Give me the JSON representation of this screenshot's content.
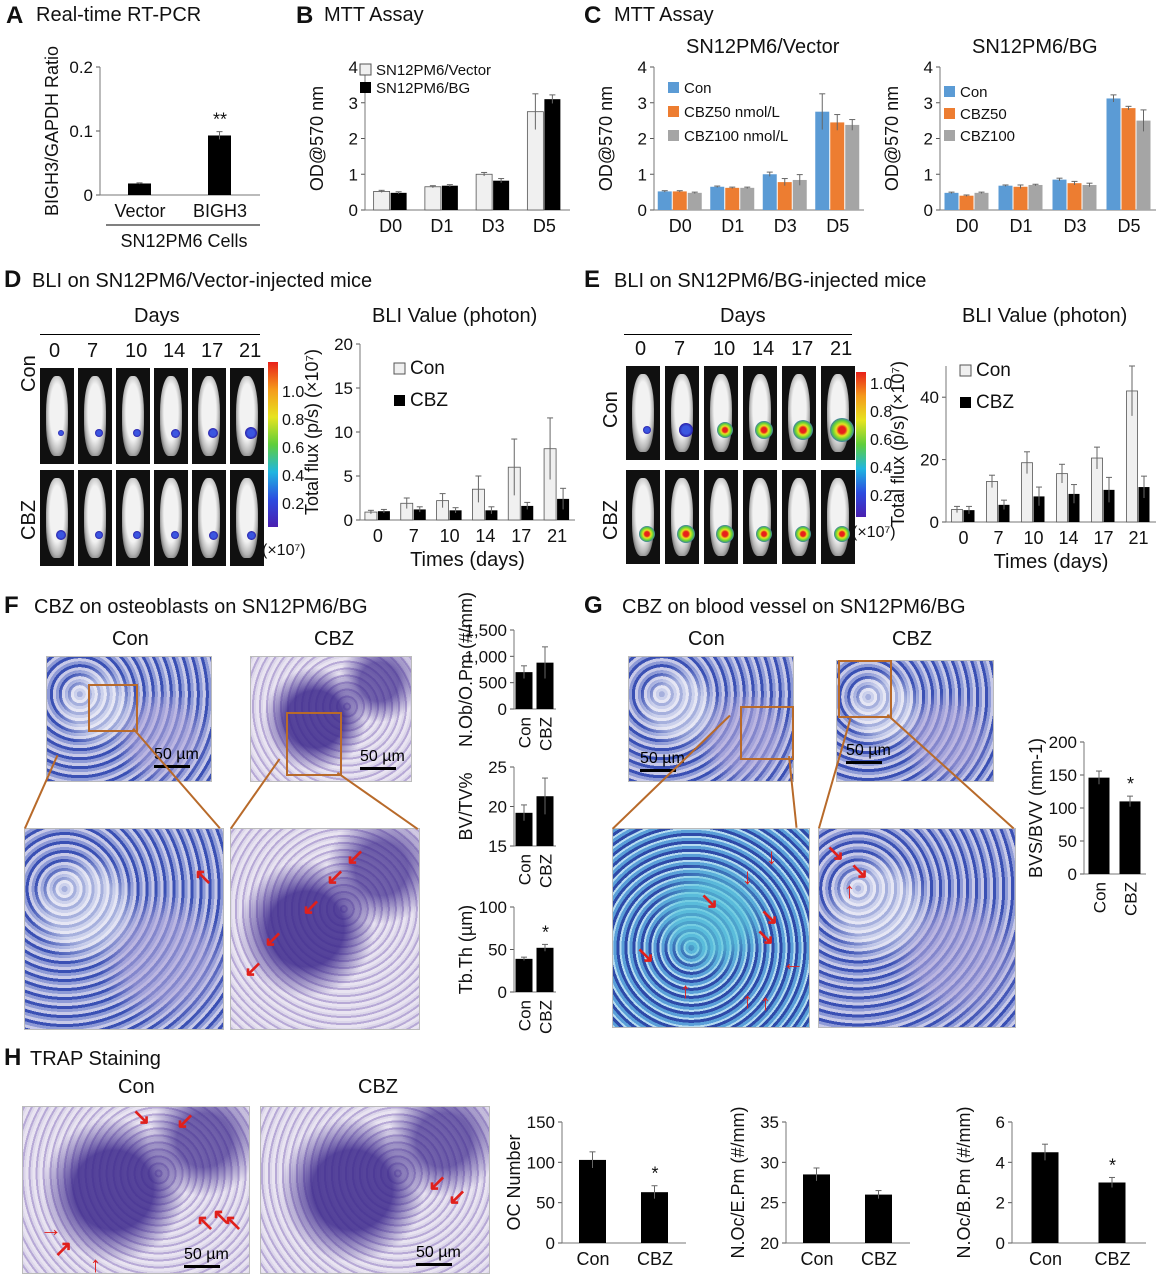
{
  "panels": {
    "A": {
      "label": "A",
      "title": "Real-time RT-PCR"
    },
    "B": {
      "label": "B",
      "title": "MTT Assay"
    },
    "C": {
      "label": "C",
      "title": "MTT Assay",
      "sub1": "SN12PM6/Vector",
      "sub2": "SN12PM6/BG"
    },
    "D": {
      "label": "D",
      "title": "BLI on SN12PM6/Vector-injected mice",
      "days": "Days",
      "bli": "BLI Value (photon)",
      "rowCon": "Con",
      "rowCBZ": "CBZ",
      "colorbar_unit": "(×10⁷)"
    },
    "E": {
      "label": "E",
      "title": "BLI on SN12PM6/BG-injected mice",
      "days": "Days",
      "bli": "BLI Value (photon)",
      "rowCon": "Con",
      "rowCBZ": "CBZ",
      "colorbar_unit": "(×10⁷)"
    },
    "F": {
      "label": "F",
      "title": "CBZ on osteoblasts on SN12PM6/BG",
      "con": "Con",
      "cbz": "CBZ",
      "scale": "50 µm"
    },
    "G": {
      "label": "G",
      "title": "CBZ on blood vessel on SN12PM6/BG",
      "con": "Con",
      "cbz": "CBZ",
      "scale": "50 µm"
    },
    "H": {
      "label": "H",
      "title": "TRAP Staining",
      "con": "Con",
      "cbz": "CBZ",
      "scale": "50 µm"
    }
  },
  "day_labels": [
    "0",
    "7",
    "10",
    "14",
    "17",
    "21"
  ],
  "colorbar_D": [
    "1.0",
    "0.8",
    "0.6",
    "0.4",
    "0.2"
  ],
  "colorbar_E": [
    "1.0",
    "0.8",
    "0.6",
    "0.4",
    "0.2"
  ],
  "colors": {
    "black": "#000000",
    "light": "#f0f0f0",
    "blue": "#5b9bd5",
    "orange": "#ed7d31",
    "gray": "#a5a5a5",
    "arrow": "#e0201c",
    "zoom": "#b86a2a"
  },
  "chart_data": [
    {
      "id": "A",
      "type": "bar",
      "categories": [
        "Vector",
        "BIGH3"
      ],
      "group_label": "SN12PM6 Cells",
      "series": [
        {
          "values": [
            0.018,
            0.093
          ],
          "errors": [
            0.001,
            0.006
          ],
          "color": "#000000"
        }
      ],
      "ylabel": "BIGH3/GAPDH Ratio",
      "ylim": [
        0,
        0.2
      ],
      "yticks": [
        "0",
        "0.1",
        "0.2"
      ],
      "annotations": [
        {
          "index": 1,
          "text": "**"
        }
      ]
    },
    {
      "id": "B",
      "type": "bar",
      "categories": [
        "D0",
        "D1",
        "D3",
        "D5"
      ],
      "series": [
        {
          "name": "SN12PM6/Vector",
          "values": [
            0.52,
            0.65,
            1.0,
            2.75
          ],
          "errors": [
            0.03,
            0.03,
            0.05,
            0.5
          ],
          "color": "#f0f0f0"
        },
        {
          "name": "SN12PM6/BG",
          "values": [
            0.48,
            0.68,
            0.82,
            3.1
          ],
          "errors": [
            0.03,
            0.03,
            0.06,
            0.12
          ],
          "color": "#000000"
        }
      ],
      "ylabel": "OD@570 nm",
      "ylim": [
        0,
        4
      ],
      "yticks": [
        "0",
        "1",
        "2",
        "3",
        "4"
      ],
      "legend": "top-left"
    },
    {
      "id": "C1",
      "type": "bar",
      "categories": [
        "D0",
        "D1",
        "D3",
        "D5"
      ],
      "series": [
        {
          "name": "Con",
          "values": [
            0.52,
            0.65,
            1.0,
            2.75
          ],
          "errors": [
            0.02,
            0.02,
            0.06,
            0.5
          ],
          "color": "#5b9bd5"
        },
        {
          "name": "CBZ50 nmol/L",
          "values": [
            0.52,
            0.62,
            0.78,
            2.45
          ],
          "errors": [
            0.02,
            0.02,
            0.1,
            0.22
          ],
          "color": "#ed7d31"
        },
        {
          "name": "CBZ100 nmol/L",
          "values": [
            0.48,
            0.62,
            0.84,
            2.38
          ],
          "errors": [
            0.02,
            0.02,
            0.15,
            0.15
          ],
          "color": "#a5a5a5"
        }
      ],
      "ylabel": "OD@570 nm",
      "ylim": [
        0,
        4
      ],
      "yticks": [
        "0",
        "1",
        "2",
        "3",
        "4"
      ],
      "legend": "top-left"
    },
    {
      "id": "C2",
      "type": "bar",
      "categories": [
        "D0",
        "D1",
        "D3",
        "D5"
      ],
      "series": [
        {
          "name": "Con",
          "values": [
            0.48,
            0.68,
            0.85,
            3.12
          ],
          "errors": [
            0.02,
            0.02,
            0.04,
            0.1
          ],
          "color": "#5b9bd5"
        },
        {
          "name": "CBZ50",
          "values": [
            0.4,
            0.65,
            0.75,
            2.85
          ],
          "errors": [
            0.02,
            0.05,
            0.05,
            0.05
          ],
          "color": "#ed7d31"
        },
        {
          "name": "CBZ100",
          "values": [
            0.48,
            0.7,
            0.7,
            2.5
          ],
          "errors": [
            0.02,
            0.02,
            0.05,
            0.3
          ],
          "color": "#a5a5a5"
        }
      ],
      "ylabel": "OD@570 nm",
      "ylim": [
        0,
        4
      ],
      "yticks": [
        "0",
        "1",
        "2",
        "3",
        "4"
      ],
      "legend": "top-left"
    },
    {
      "id": "D",
      "type": "bar",
      "categories": [
        "0",
        "7",
        "10",
        "14",
        "17",
        "21"
      ],
      "series": [
        {
          "name": "Con",
          "values": [
            0.9,
            1.9,
            2.2,
            3.5,
            6.0,
            8.1
          ],
          "errors": [
            0.2,
            0.6,
            0.8,
            1.5,
            3.2,
            3.5
          ],
          "color": "#f0f0f0"
        },
        {
          "name": "CBZ",
          "values": [
            1.0,
            1.2,
            1.1,
            1.1,
            1.6,
            2.4
          ],
          "errors": [
            0.2,
            0.3,
            0.3,
            0.4,
            0.4,
            1.2
          ],
          "color": "#000000"
        }
      ],
      "xlabel": "Times (days)",
      "ylabel": "Total flux (p/s) (×10⁷)",
      "ylim": [
        0,
        20
      ],
      "yticks": [
        "0",
        "5",
        "10",
        "15",
        "20"
      ],
      "legend": "top-left"
    },
    {
      "id": "E",
      "type": "bar",
      "categories": [
        "0",
        "7",
        "10",
        "14",
        "17",
        "21"
      ],
      "series": [
        {
          "name": "Con",
          "values": [
            4,
            13,
            19,
            15.5,
            20.5,
            42
          ],
          "errors": [
            1,
            2,
            3.5,
            3,
            3.5,
            8
          ],
          "color": "#f0f0f0"
        },
        {
          "name": "CBZ",
          "values": [
            3.8,
            5.5,
            8.2,
            9,
            10.3,
            11.2
          ],
          "errors": [
            1.2,
            1.5,
            3,
            3,
            4,
            3.5
          ],
          "color": "#000000"
        }
      ],
      "xlabel": "Times (days)",
      "ylabel": "Total flux (p/s) (×10⁷)",
      "ylim": [
        0,
        50
      ],
      "yticks": [
        "0",
        "20",
        "40"
      ],
      "legend": "top-left"
    },
    {
      "id": "F1",
      "type": "bar",
      "categories": [
        "Con",
        "CBZ"
      ],
      "series": [
        {
          "values": [
            700,
            880
          ],
          "errors": [
            120,
            300
          ],
          "color": "#000000"
        }
      ],
      "ylabel": "N.Ob/O.Pm (#/mm)",
      "ylim": [
        0,
        1500
      ],
      "yticks": [
        "0",
        "500",
        "1,000",
        "1,500"
      ]
    },
    {
      "id": "F2",
      "type": "bar",
      "categories": [
        "Con",
        "CBZ"
      ],
      "series": [
        {
          "values": [
            19.2,
            21.3
          ],
          "errors": [
            1.0,
            2.3
          ],
          "color": "#000000"
        }
      ],
      "ylabel": "BV/TV%",
      "ylim": [
        15,
        25
      ],
      "yticks": [
        "15",
        "20",
        "25"
      ]
    },
    {
      "id": "F3",
      "type": "bar",
      "categories": [
        "Con",
        "CBZ"
      ],
      "series": [
        {
          "values": [
            39,
            52
          ],
          "errors": [
            2,
            4
          ],
          "color": "#000000"
        }
      ],
      "ylabel": "Tb.Th (µm)",
      "ylim": [
        0,
        100
      ],
      "yticks": [
        "0",
        "50",
        "100"
      ],
      "annotations": [
        {
          "index": 1,
          "text": "*"
        }
      ]
    },
    {
      "id": "G",
      "type": "bar",
      "categories": [
        "Con",
        "CBZ"
      ],
      "series": [
        {
          "values": [
            146,
            110
          ],
          "errors": [
            10,
            8
          ],
          "color": "#000000"
        }
      ],
      "ylabel": "BVS/BVV (mm-1)",
      "ylim": [
        0,
        200
      ],
      "yticks": [
        "0",
        "50",
        "100",
        "150",
        "200"
      ],
      "annotations": [
        {
          "index": 1,
          "text": "*"
        }
      ]
    },
    {
      "id": "H1",
      "type": "bar",
      "categories": [
        "Con",
        "CBZ"
      ],
      "series": [
        {
          "values": [
            103,
            63
          ],
          "errors": [
            10,
            8
          ],
          "color": "#000000"
        }
      ],
      "ylabel": "OC Number",
      "ylim": [
        0,
        150
      ],
      "yticks": [
        "0",
        "50",
        "100",
        "150"
      ],
      "annotations": [
        {
          "index": 1,
          "text": "*"
        }
      ]
    },
    {
      "id": "H2",
      "type": "bar",
      "categories": [
        "Con",
        "CBZ"
      ],
      "series": [
        {
          "values": [
            28.5,
            26
          ],
          "errors": [
            0.8,
            0.5
          ],
          "color": "#000000"
        }
      ],
      "ylabel": "N.Oc/E.Pm (#/mm)",
      "ylim": [
        20,
        35
      ],
      "yticks": [
        "20",
        "25",
        "30",
        "35"
      ]
    },
    {
      "id": "H3",
      "type": "bar",
      "categories": [
        "Con",
        "CBZ"
      ],
      "series": [
        {
          "values": [
            4.5,
            3.0
          ],
          "errors": [
            0.4,
            0.25
          ],
          "color": "#000000"
        }
      ],
      "ylabel": "N.Oc/B.Pm (#/mm)",
      "ylim": [
        0,
        6
      ],
      "yticks": [
        "0",
        "2",
        "4",
        "6"
      ],
      "annotations": [
        {
          "index": 1,
          "text": "*"
        }
      ]
    }
  ]
}
